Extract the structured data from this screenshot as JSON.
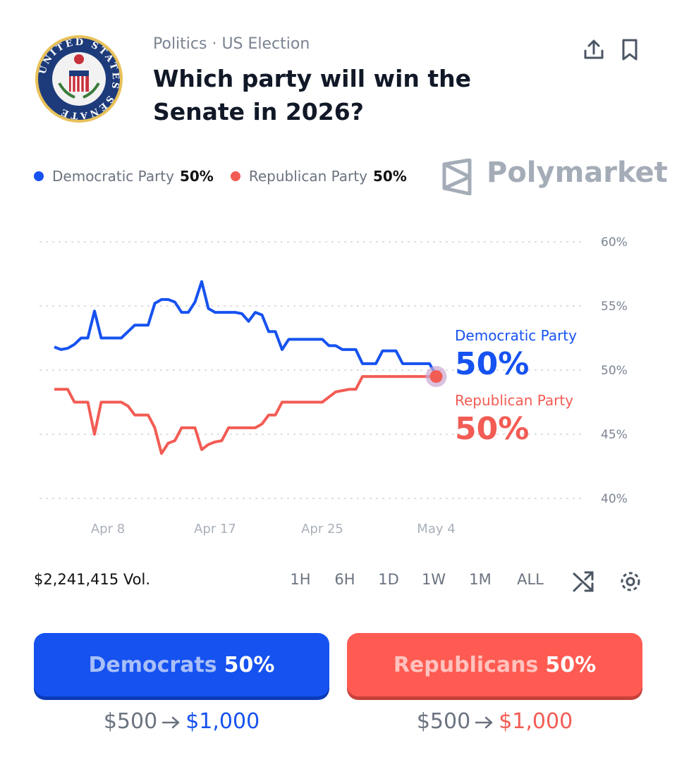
{
  "header": {
    "category": "Politics · US Election",
    "title": "Which party will win the Senate in 2026?",
    "seal_text": "UNITED STATES SENATE"
  },
  "brand": "Polymarket",
  "chart_data": {
    "type": "line",
    "categories": [
      null,
      null,
      null,
      null,
      null,
      null,
      null,
      null,
      "Apr 8",
      null,
      null,
      null,
      null,
      null,
      null,
      null,
      null,
      null,
      null,
      null,
      null,
      null,
      null,
      null,
      "Apr 17",
      null,
      null,
      null,
      null,
      null,
      null,
      null,
      null,
      null,
      null,
      null,
      null,
      null,
      null,
      null,
      "Apr 25",
      null,
      null,
      null,
      null,
      null,
      null,
      null,
      null,
      null,
      null,
      null,
      null,
      null,
      null,
      null,
      null,
      "May 4"
    ],
    "series": [
      {
        "name": "Democratic Party",
        "color": "#1652f0",
        "current_label": "50%",
        "values": [
          51.8,
          51.6,
          51.7,
          52,
          52.5,
          52.5,
          54.6,
          52.5,
          52.5,
          52.5,
          52.5,
          53,
          53.5,
          53.5,
          53.5,
          55.2,
          55.5,
          55.5,
          55.3,
          54.5,
          54.5,
          55.3,
          56.9,
          54.8,
          54.5,
          54.5,
          54.5,
          54.5,
          54.4,
          53.8,
          54.5,
          54.3,
          53,
          53,
          51.6,
          52.4,
          52.4,
          52.4,
          52.4,
          52.4,
          52.4,
          51.9,
          51.9,
          51.6,
          51.6,
          51.6,
          50.5,
          50.5,
          50.5,
          51.5,
          51.5,
          51.5,
          50.5,
          50.5,
          50.5,
          50.5,
          50.5,
          49.6
        ]
      },
      {
        "name": "Republican Party",
        "color": "#f25c54",
        "current_label": "50%",
        "values": [
          48.5,
          48.5,
          48.5,
          47.5,
          47.5,
          47.5,
          45,
          47.5,
          47.5,
          47.5,
          47.5,
          47.2,
          46.5,
          46.5,
          46.5,
          45.5,
          43.5,
          44.3,
          44.5,
          45.5,
          45.5,
          45.5,
          43.8,
          44.2,
          44.4,
          44.5,
          45.5,
          45.5,
          45.5,
          45.5,
          45.5,
          45.8,
          46.5,
          46.5,
          47.5,
          47.5,
          47.5,
          47.5,
          47.5,
          47.5,
          47.5,
          47.9,
          48.3,
          48.4,
          48.5,
          48.5,
          49.5,
          49.5,
          49.5,
          49.5,
          49.5,
          49.5,
          49.5,
          49.5,
          49.5,
          49.5,
          49.5,
          49.5
        ]
      }
    ],
    "ylim": [
      40,
      60
    ],
    "yticks": [
      {
        "value": 40,
        "label": "40%"
      },
      {
        "value": 45,
        "label": "45%"
      },
      {
        "value": 50,
        "label": "50%"
      },
      {
        "value": 55,
        "label": "55%"
      },
      {
        "value": 60,
        "label": "60%"
      }
    ],
    "grid": true
  },
  "volume": "$2,241,415 Vol.",
  "timeframes": [
    "1H",
    "6H",
    "1D",
    "1W",
    "1M",
    "ALL"
  ],
  "buttons": [
    {
      "label": "Democrats",
      "price": "50%",
      "stake": "$500",
      "payout": "$1,000"
    },
    {
      "label": "Republicans",
      "price": "50%",
      "stake": "$500",
      "payout": "$1,000"
    }
  ]
}
